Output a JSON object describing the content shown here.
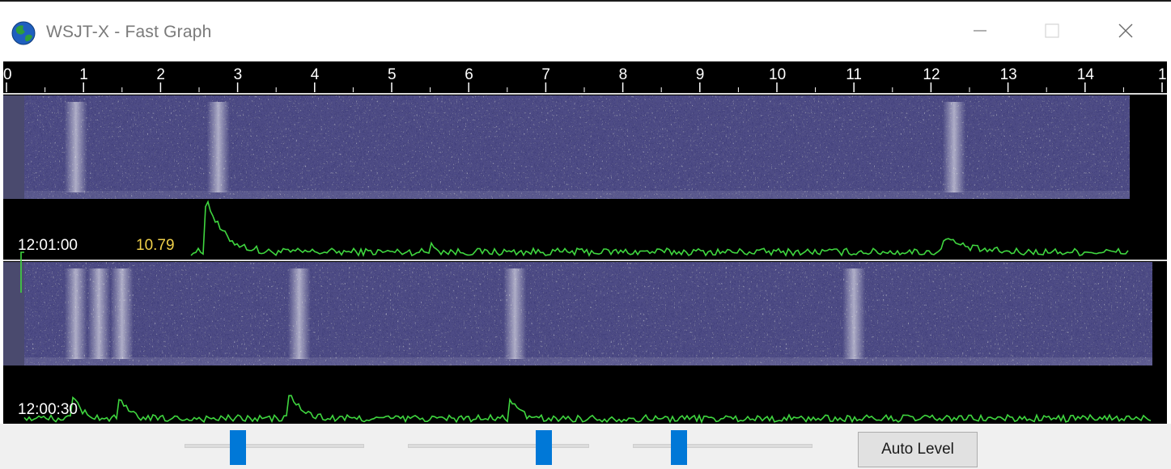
{
  "window": {
    "title": "WSJT-X - Fast Graph",
    "icon": "globe-icon",
    "buttons": {
      "minimize": "minimize-icon",
      "maximize": "maximize-icon",
      "close": "close-icon"
    }
  },
  "graph": {
    "time_axis_ticks": [
      "0",
      "1",
      "2",
      "3",
      "4",
      "5",
      "6",
      "7",
      "8",
      "9",
      "10",
      "11",
      "12",
      "13",
      "14",
      "1"
    ],
    "panels": [
      {
        "timestamp": "12:01:00",
        "level": "10.79",
        "signal_bursts": [
          0.9,
          2.75,
          12.3
        ]
      },
      {
        "timestamp": "12:00:30",
        "level": "",
        "signal_bursts": [
          0.9,
          1.2,
          1.5,
          3.8,
          6.6,
          11.0
        ]
      }
    ],
    "colors": {
      "waterfall_base": "#4e4c86",
      "power_trace": "#3fd63f",
      "timestamp_text": "#ffffff",
      "level_text": "#f0d04a",
      "axis_text": "#ffffff"
    }
  },
  "controls": {
    "sliders": [
      {
        "name": "slider-1",
        "value": 0.3
      },
      {
        "name": "slider-2",
        "value": 0.75
      },
      {
        "name": "slider-3",
        "value": 0.25
      }
    ],
    "auto_level_label": "Auto Level",
    "accent": "#0078d7"
  }
}
